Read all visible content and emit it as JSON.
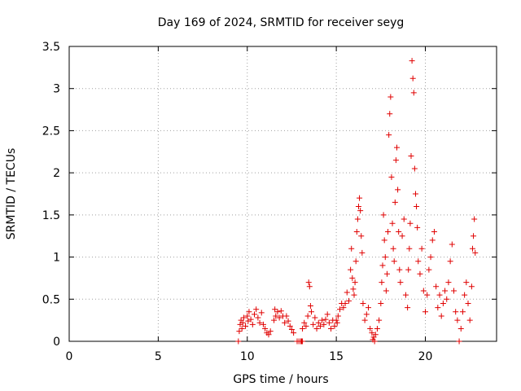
{
  "chart_data": {
    "type": "scatter",
    "title": "Day 169 of 2024, SRMTID for receiver seyg",
    "xlabel": "GPS time / hours",
    "ylabel": "SRMTID / TECUs",
    "xlim": [
      0,
      24
    ],
    "ylim": [
      0,
      3.5
    ],
    "grid": true,
    "marker": "+",
    "color": "#e00000",
    "xticks": [
      0,
      5,
      10,
      15,
      20
    ],
    "xtick_labels": [
      "0",
      "5",
      "10",
      "15",
      "20"
    ],
    "yticks": [
      0,
      0.5,
      1,
      1.5,
      2,
      2.5,
      3,
      3.5
    ],
    "ytick_labels": [
      "0",
      "0.5",
      "1",
      "1.5",
      "2",
      "2.5",
      "3",
      "3.5"
    ],
    "series": [
      {
        "name": "SRMTID",
        "points": [
          [
            9.5,
            0.0
          ],
          [
            9.55,
            0.12
          ],
          [
            9.6,
            0.2
          ],
          [
            9.65,
            0.25
          ],
          [
            9.7,
            0.15
          ],
          [
            9.75,
            0.22
          ],
          [
            9.8,
            0.28
          ],
          [
            9.9,
            0.18
          ],
          [
            10.0,
            0.3
          ],
          [
            10.05,
            0.24
          ],
          [
            10.1,
            0.35
          ],
          [
            10.2,
            0.26
          ],
          [
            10.3,
            0.2
          ],
          [
            10.4,
            0.32
          ],
          [
            10.5,
            0.38
          ],
          [
            10.6,
            0.28
          ],
          [
            10.7,
            0.22
          ],
          [
            10.8,
            0.34
          ],
          [
            10.9,
            0.2
          ],
          [
            11.0,
            0.15
          ],
          [
            11.1,
            0.1
          ],
          [
            11.2,
            0.08
          ],
          [
            11.3,
            0.12
          ],
          [
            11.5,
            0.25
          ],
          [
            11.55,
            0.38
          ],
          [
            11.6,
            0.3
          ],
          [
            11.7,
            0.35
          ],
          [
            11.8,
            0.28
          ],
          [
            11.9,
            0.36
          ],
          [
            12.0,
            0.3
          ],
          [
            12.1,
            0.22
          ],
          [
            12.2,
            0.3
          ],
          [
            12.3,
            0.24
          ],
          [
            12.4,
            0.18
          ],
          [
            12.5,
            0.14
          ],
          [
            12.6,
            0.1
          ],
          [
            12.8,
            0.0
          ],
          [
            12.9,
            0.0
          ],
          [
            13.0,
            0.0
          ],
          [
            13.05,
            0.0
          ],
          [
            13.1,
            0.0
          ],
          [
            13.1,
            0.15
          ],
          [
            13.2,
            0.22
          ],
          [
            13.3,
            0.18
          ],
          [
            13.4,
            0.3
          ],
          [
            13.45,
            0.7
          ],
          [
            13.5,
            0.65
          ],
          [
            13.55,
            0.42
          ],
          [
            13.6,
            0.35
          ],
          [
            13.7,
            0.2
          ],
          [
            13.8,
            0.28
          ],
          [
            13.9,
            0.15
          ],
          [
            14.0,
            0.22
          ],
          [
            14.1,
            0.18
          ],
          [
            14.2,
            0.25
          ],
          [
            14.3,
            0.2
          ],
          [
            14.4,
            0.26
          ],
          [
            14.5,
            0.32
          ],
          [
            14.6,
            0.22
          ],
          [
            14.7,
            0.15
          ],
          [
            14.8,
            0.25
          ],
          [
            14.9,
            0.18
          ],
          [
            15.0,
            0.25
          ],
          [
            15.05,
            0.22
          ],
          [
            15.1,
            0.3
          ],
          [
            15.2,
            0.38
          ],
          [
            15.3,
            0.45
          ],
          [
            15.4,
            0.4
          ],
          [
            15.5,
            0.45
          ],
          [
            15.6,
            0.58
          ],
          [
            15.7,
            0.48
          ],
          [
            15.8,
            0.85
          ],
          [
            15.85,
            1.1
          ],
          [
            15.9,
            0.75
          ],
          [
            15.95,
            0.62
          ],
          [
            16.0,
            0.55
          ],
          [
            16.05,
            0.7
          ],
          [
            16.1,
            0.95
          ],
          [
            16.15,
            1.3
          ],
          [
            16.2,
            1.45
          ],
          [
            16.25,
            1.6
          ],
          [
            16.3,
            1.7
          ],
          [
            16.35,
            1.55
          ],
          [
            16.4,
            1.25
          ],
          [
            16.45,
            1.05
          ],
          [
            16.5,
            0.45
          ],
          [
            16.6,
            0.25
          ],
          [
            16.7,
            0.32
          ],
          [
            16.8,
            0.4
          ],
          [
            16.9,
            0.15
          ],
          [
            17.0,
            0.1
          ],
          [
            17.05,
            0.02
          ],
          [
            17.1,
            0.05
          ],
          [
            17.15,
            0.0
          ],
          [
            17.2,
            0.08
          ],
          [
            17.3,
            0.15
          ],
          [
            17.4,
            0.25
          ],
          [
            17.5,
            0.45
          ],
          [
            17.55,
            0.7
          ],
          [
            17.6,
            0.9
          ],
          [
            17.65,
            1.5
          ],
          [
            17.7,
            1.2
          ],
          [
            17.75,
            1.0
          ],
          [
            17.8,
            0.6
          ],
          [
            17.85,
            0.8
          ],
          [
            17.9,
            1.3
          ],
          [
            17.95,
            2.45
          ],
          [
            18.0,
            2.7
          ],
          [
            18.05,
            2.9
          ],
          [
            18.1,
            1.95
          ],
          [
            18.15,
            1.4
          ],
          [
            18.2,
            1.1
          ],
          [
            18.25,
            0.95
          ],
          [
            18.3,
            1.65
          ],
          [
            18.35,
            2.15
          ],
          [
            18.4,
            2.3
          ],
          [
            18.45,
            1.8
          ],
          [
            18.5,
            1.3
          ],
          [
            18.55,
            0.85
          ],
          [
            18.6,
            0.7
          ],
          [
            18.7,
            1.25
          ],
          [
            18.8,
            1.45
          ],
          [
            18.9,
            0.55
          ],
          [
            19.0,
            0.4
          ],
          [
            19.05,
            0.85
          ],
          [
            19.1,
            1.1
          ],
          [
            19.15,
            1.4
          ],
          [
            19.2,
            2.2
          ],
          [
            19.25,
            3.33
          ],
          [
            19.3,
            3.12
          ],
          [
            19.35,
            2.95
          ],
          [
            19.4,
            2.05
          ],
          [
            19.45,
            1.75
          ],
          [
            19.5,
            1.6
          ],
          [
            19.55,
            1.35
          ],
          [
            19.6,
            0.95
          ],
          [
            19.7,
            0.8
          ],
          [
            19.8,
            1.1
          ],
          [
            19.9,
            0.6
          ],
          [
            20.0,
            0.35
          ],
          [
            20.1,
            0.55
          ],
          [
            20.2,
            0.85
          ],
          [
            20.3,
            1.0
          ],
          [
            20.4,
            1.2
          ],
          [
            20.5,
            1.3
          ],
          [
            20.6,
            0.65
          ],
          [
            20.7,
            0.4
          ],
          [
            20.8,
            0.55
          ],
          [
            20.9,
            0.3
          ],
          [
            21.0,
            0.45
          ],
          [
            21.1,
            0.6
          ],
          [
            21.2,
            0.5
          ],
          [
            21.3,
            0.7
          ],
          [
            21.4,
            0.95
          ],
          [
            21.5,
            1.15
          ],
          [
            21.6,
            0.6
          ],
          [
            21.7,
            0.35
          ],
          [
            21.8,
            0.25
          ],
          [
            21.9,
            0.0
          ],
          [
            22.0,
            0.15
          ],
          [
            22.1,
            0.35
          ],
          [
            22.2,
            0.55
          ],
          [
            22.3,
            0.7
          ],
          [
            22.4,
            0.45
          ],
          [
            22.5,
            0.25
          ],
          [
            22.6,
            0.65
          ],
          [
            22.65,
            1.1
          ],
          [
            22.7,
            1.25
          ],
          [
            22.75,
            1.45
          ],
          [
            22.8,
            1.05
          ]
        ]
      }
    ]
  }
}
